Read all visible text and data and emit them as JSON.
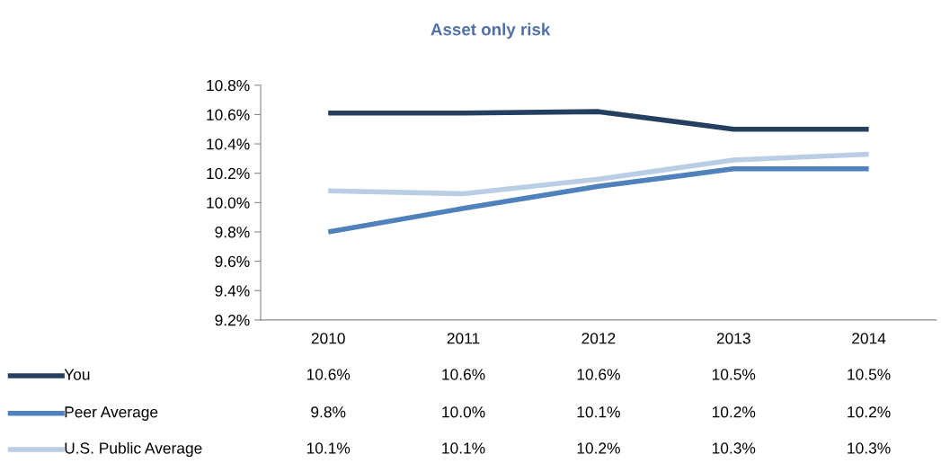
{
  "chart_data": {
    "type": "line",
    "title": "Asset only risk",
    "categories": [
      "2010",
      "2011",
      "2012",
      "2013",
      "2014"
    ],
    "series": [
      {
        "name": "You",
        "color": "#243f60",
        "values": [
          10.61,
          10.61,
          10.62,
          10.5,
          10.5
        ],
        "value_labels": [
          "10.6%",
          "10.6%",
          "10.6%",
          "10.5%",
          "10.5%"
        ]
      },
      {
        "name": "Peer Average",
        "color": "#4f81bd",
        "values": [
          9.8,
          9.96,
          10.11,
          10.23,
          10.23
        ],
        "value_labels": [
          "9.8%",
          "10.0%",
          "10.1%",
          "10.2%",
          "10.2%"
        ]
      },
      {
        "name": "U.S. Public Average",
        "color": "#b9cde5",
        "values": [
          10.08,
          10.06,
          10.16,
          10.29,
          10.33
        ],
        "value_labels": [
          "10.1%",
          "10.1%",
          "10.2%",
          "10.3%",
          "10.3%"
        ]
      }
    ],
    "ylim": [
      9.2,
      10.8
    ],
    "yticks": [
      {
        "value": 9.2,
        "label": "9.2%"
      },
      {
        "value": 9.4,
        "label": "9.4%"
      },
      {
        "value": 9.6,
        "label": "9.6%"
      },
      {
        "value": 9.8,
        "label": "9.8%"
      },
      {
        "value": 10.0,
        "label": "10.0%"
      },
      {
        "value": 10.2,
        "label": "10.2%"
      },
      {
        "value": 10.4,
        "label": "10.4%"
      },
      {
        "value": 10.6,
        "label": "10.6%"
      },
      {
        "value": 10.8,
        "label": "10.8%"
      }
    ],
    "grid": false,
    "legend": "bottom",
    "marker": "none",
    "line_style": "solid"
  }
}
